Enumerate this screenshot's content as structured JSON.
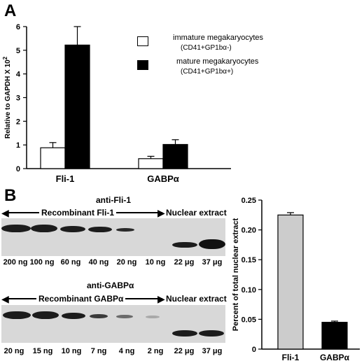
{
  "panel_a_letter": "A",
  "panel_b_letter": "B",
  "chart_data": [
    {
      "type": "bar",
      "categories": [
        "Fli-1",
        "GABPα"
      ],
      "series": [
        {
          "name": "immature megakaryocytes (CD41+GP1bα-)",
          "values": [
            0.88,
            0.42
          ],
          "errors": [
            0.22,
            0.1
          ],
          "color": "#ffffff"
        },
        {
          "name": "mature megakaryocytes (CD41+GP1bα+)",
          "values": [
            5.22,
            1.02
          ],
          "errors": [
            0.78,
            0.2
          ],
          "color": "#000000"
        }
      ],
      "ylabel": "Relative to GAPDH X 10^2",
      "ylim": [
        0,
        6
      ],
      "yticks": [
        0,
        1,
        2,
        3,
        4,
        5,
        6
      ],
      "legend_position": "top-right",
      "grid": false
    },
    {
      "type": "bar",
      "categories": [
        "Fli-1",
        "GABPα"
      ],
      "values": [
        0.225,
        0.045
      ],
      "errors": [
        0.004,
        0.002
      ],
      "colors": [
        "#cccccc",
        "#000000"
      ],
      "ylabel": "Percent of total nuclear extract",
      "ylim": [
        0,
        0.25
      ],
      "yticks": [
        "0",
        "0.05",
        "0.10",
        "0.15",
        "0.20",
        "0.25"
      ],
      "grid": false
    }
  ],
  "legend_a": {
    "immature_line1": "immature megakaryocytes",
    "immature_line2": "(CD41+GP1bα-)",
    "mature_line1": "mature megakaryocytes",
    "mature_line2": "(CD41+GP1bα+)"
  },
  "blot1": {
    "title": "anti-Fli-1",
    "recombinant_label": "Recombinant Fli-1",
    "nuclear_label": "Nuclear extract",
    "lanes": [
      "200 ng",
      "100 ng",
      "60 ng",
      "40 ng",
      "20 ng",
      "10 ng",
      "22 μg",
      "37 μg"
    ]
  },
  "blot2": {
    "title": "anti-GABPα",
    "recombinant_label": "Recombinant GABPα",
    "nuclear_label": "Nuclear extract",
    "lanes": [
      "20 ng",
      "15 ng",
      "10 ng",
      "7 ng",
      "4 ng",
      "2 ng",
      "22 μg",
      "37 μg"
    ]
  }
}
